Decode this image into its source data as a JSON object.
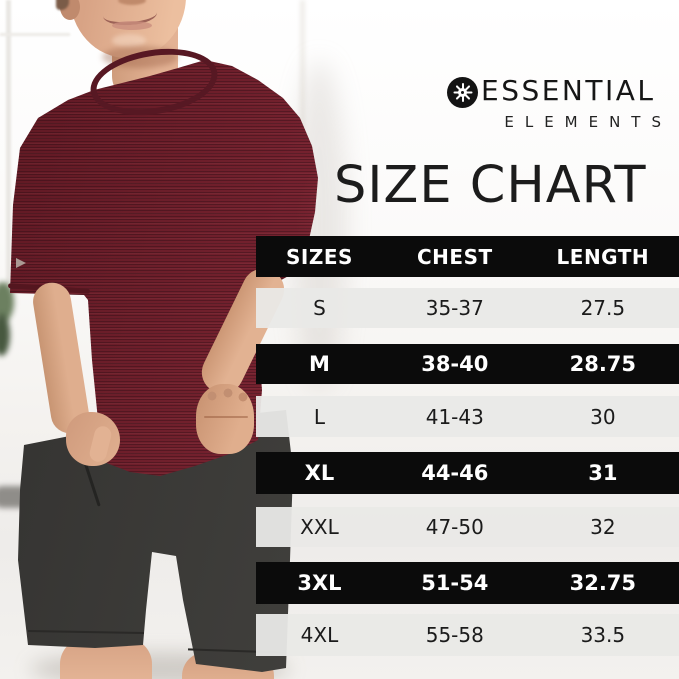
{
  "brand": {
    "icon": "floral-medallion-icon",
    "name": "ESSENTIAL",
    "tagline": "ELEMENTS"
  },
  "title": "SIZE CHART",
  "chart_data": {
    "type": "table",
    "title": "SIZE CHART",
    "columns": [
      "SIZES",
      "CHEST",
      "LENGTH"
    ],
    "rows": [
      {
        "size": "S",
        "chest": "35-37",
        "length": "27.5"
      },
      {
        "size": "M",
        "chest": "38-40",
        "length": "28.75"
      },
      {
        "size": "L",
        "chest": "41-43",
        "length": "30"
      },
      {
        "size": "XL",
        "chest": "44-46",
        "length": "31"
      },
      {
        "size": "XXL",
        "chest": "47-50",
        "length": "32"
      },
      {
        "size": "3XL",
        "chest": "51-54",
        "length": "32.75"
      },
      {
        "size": "4XL",
        "chest": "55-58",
        "length": "33.5"
      }
    ],
    "layout": {
      "row_pattern": "alternating light/dark starting light",
      "header": "black with white text"
    }
  },
  "colors": {
    "row_dark": "#0b0b0b",
    "row_light": "#e9e9e7",
    "text_on_dark": "#ffffff",
    "text_on_light": "#1b1b1b",
    "shirt_maroon": "#74212e",
    "shorts_charcoal": "#3b3a38"
  },
  "photo": {
    "alt": "man wearing heathered maroon crew-neck t-shirt and charcoal shorts, hand in pocket"
  }
}
